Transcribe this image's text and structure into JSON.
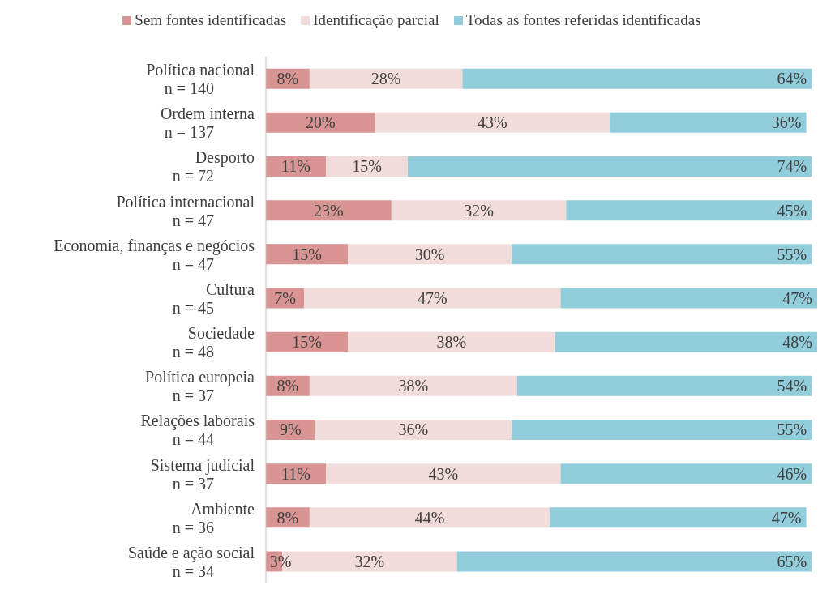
{
  "chart_data": {
    "type": "bar",
    "orientation": "horizontal",
    "stacked": true,
    "legend": "top",
    "tick_labels": "y",
    "categories": [
      "Política nacional\nn = 140",
      "Ordem interna\nn = 137",
      "Desporto\nn = 72",
      "Política internacional\nn = 47",
      "Economia, finanças e negócios\nn = 47",
      "Cultura\nn = 45",
      "Sociedade\nn = 48",
      "Política europeia\nn = 37",
      "Relações laborais\nn = 44",
      "Sistema judicial\nn = 37",
      "Ambiente\nn = 36",
      "Saúde e ação social\nn = 34"
    ],
    "series": [
      {
        "name": "Sem fontes identificadas",
        "color": "#d99594",
        "values": [
          8,
          20,
          11,
          23,
          15,
          7,
          15,
          8,
          9,
          11,
          8,
          3
        ],
        "value_labels": [
          "8%",
          "20%",
          "11%",
          "23%",
          "15%",
          "7%",
          "15%",
          "8%",
          "9%",
          "11%",
          "8%",
          "3%"
        ]
      },
      {
        "name": "Identificação parcial",
        "color": "#f2dcdb",
        "values": [
          28,
          43,
          15,
          32,
          30,
          47,
          38,
          38,
          36,
          43,
          44,
          32
        ],
        "value_labels": [
          "28%",
          "43%",
          "15%",
          "32%",
          "30%",
          "47%",
          "38%",
          "38%",
          "36%",
          "43%",
          "44%",
          "32%"
        ]
      },
      {
        "name": "Todas as fontes referidas identificadas",
        "color": "#92cddc",
        "values": [
          64,
          36,
          74,
          45,
          55,
          47,
          48,
          54,
          55,
          46,
          47,
          65
        ],
        "value_labels": [
          "64%",
          "36%",
          "74%",
          "45%",
          "55%",
          "47%",
          "48%",
          "54%",
          "55%",
          "46%",
          "47%",
          "65%"
        ]
      }
    ]
  }
}
